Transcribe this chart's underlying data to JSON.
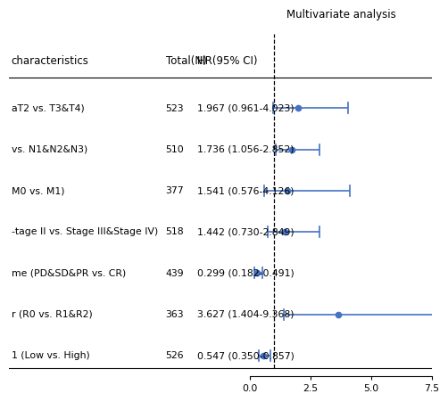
{
  "header_left": "characteristics",
  "header_total": "Total(N)",
  "header_hr": "HR(95% CI)",
  "header_analysis": "Multivariate analysis",
  "rows": [
    {
      "label": "aT2 vs. T3&T4)",
      "total": "523",
      "hr_text": "1.967 (0.961-4.023)",
      "hr": 1.967,
      "ci_low": 0.961,
      "ci_high": 4.023
    },
    {
      "label": "vs. N1&N2&N3)",
      "total": "510",
      "hr_text": "1.736 (1.056-2.852)",
      "hr": 1.736,
      "ci_low": 1.056,
      "ci_high": 2.852
    },
    {
      "label": "M0 vs. M1)",
      "total": "377",
      "hr_text": "1.541 (0.576-4.126)",
      "hr": 1.541,
      "ci_low": 0.576,
      "ci_high": 4.126
    },
    {
      "label": "-tage II vs. Stage III&Stage IV)",
      "total": "518",
      "hr_text": "1.442 (0.730-2.849)",
      "hr": 1.442,
      "ci_low": 0.73,
      "ci_high": 2.849
    },
    {
      "label": "me (PD&SD&PR vs. CR)",
      "total": "439",
      "hr_text": "0.299 (0.182-0.491)",
      "hr": 0.299,
      "ci_low": 0.182,
      "ci_high": 0.491
    },
    {
      "label": "r (R0 vs. R1&R2)",
      "total": "363",
      "hr_text": "3.627 (1.404-9.368)",
      "hr": 3.627,
      "ci_low": 1.404,
      "ci_high": 9.368
    },
    {
      "label": "1 (Low vs. High)",
      "total": "526",
      "hr_text": "0.547 (0.350-0.857)",
      "hr": 0.547,
      "ci_low": 0.35,
      "ci_high": 0.857
    }
  ],
  "xlim": [
    0.0,
    7.5
  ],
  "xticks": [
    0.0,
    2.5,
    5.0,
    7.5
  ],
  "ref_line": 1.0,
  "dot_color": "#4472C4",
  "line_color": "#4472C4",
  "background_color": "#ffffff",
  "text_color": "#000000",
  "fontsize": 7.8,
  "header_fontsize": 8.5,
  "cap_size": 0.13
}
